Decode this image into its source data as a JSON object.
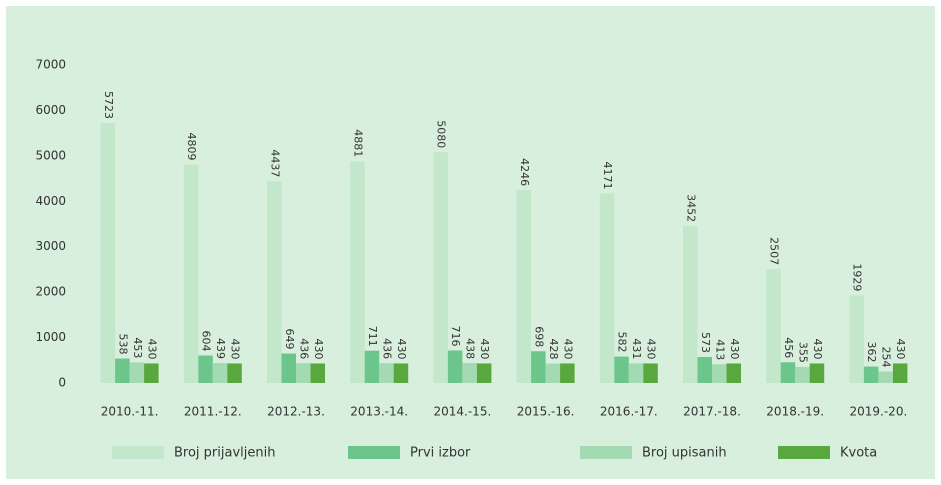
{
  "chart_data": {
    "type": "bar",
    "categories": [
      "2010.-11.",
      "2011.-12.",
      "2012.-13.",
      "2013.-14.",
      "2014.-15.",
      "2015.-16.",
      "2016.-17.",
      "2017.-18.",
      "2018.-19.",
      "2019.-20."
    ],
    "series": [
      {
        "name": "Broj prijavljenih",
        "color": "#c2e7ca",
        "values": [
          5723,
          4809,
          4437,
          4881,
          5080,
          4246,
          4171,
          3452,
          2507,
          1929
        ]
      },
      {
        "name": "Prvi izbor",
        "color": "#6cc58a",
        "values": [
          538,
          604,
          649,
          711,
          716,
          698,
          582,
          573,
          456,
          362
        ]
      },
      {
        "name": "Broj upisanih",
        "color": "#a3dab1",
        "values": [
          453,
          439,
          436,
          436,
          438,
          428,
          431,
          413,
          355,
          254
        ]
      },
      {
        "name": "Kvota",
        "color": "#58a83d",
        "values": [
          430,
          430,
          430,
          430,
          430,
          430,
          430,
          430,
          430,
          430
        ]
      }
    ],
    "ylim": [
      0,
      7000
    ],
    "yticks": [
      0,
      1000,
      2000,
      3000,
      4000,
      5000,
      6000,
      7000
    ],
    "legend": "bottom"
  }
}
